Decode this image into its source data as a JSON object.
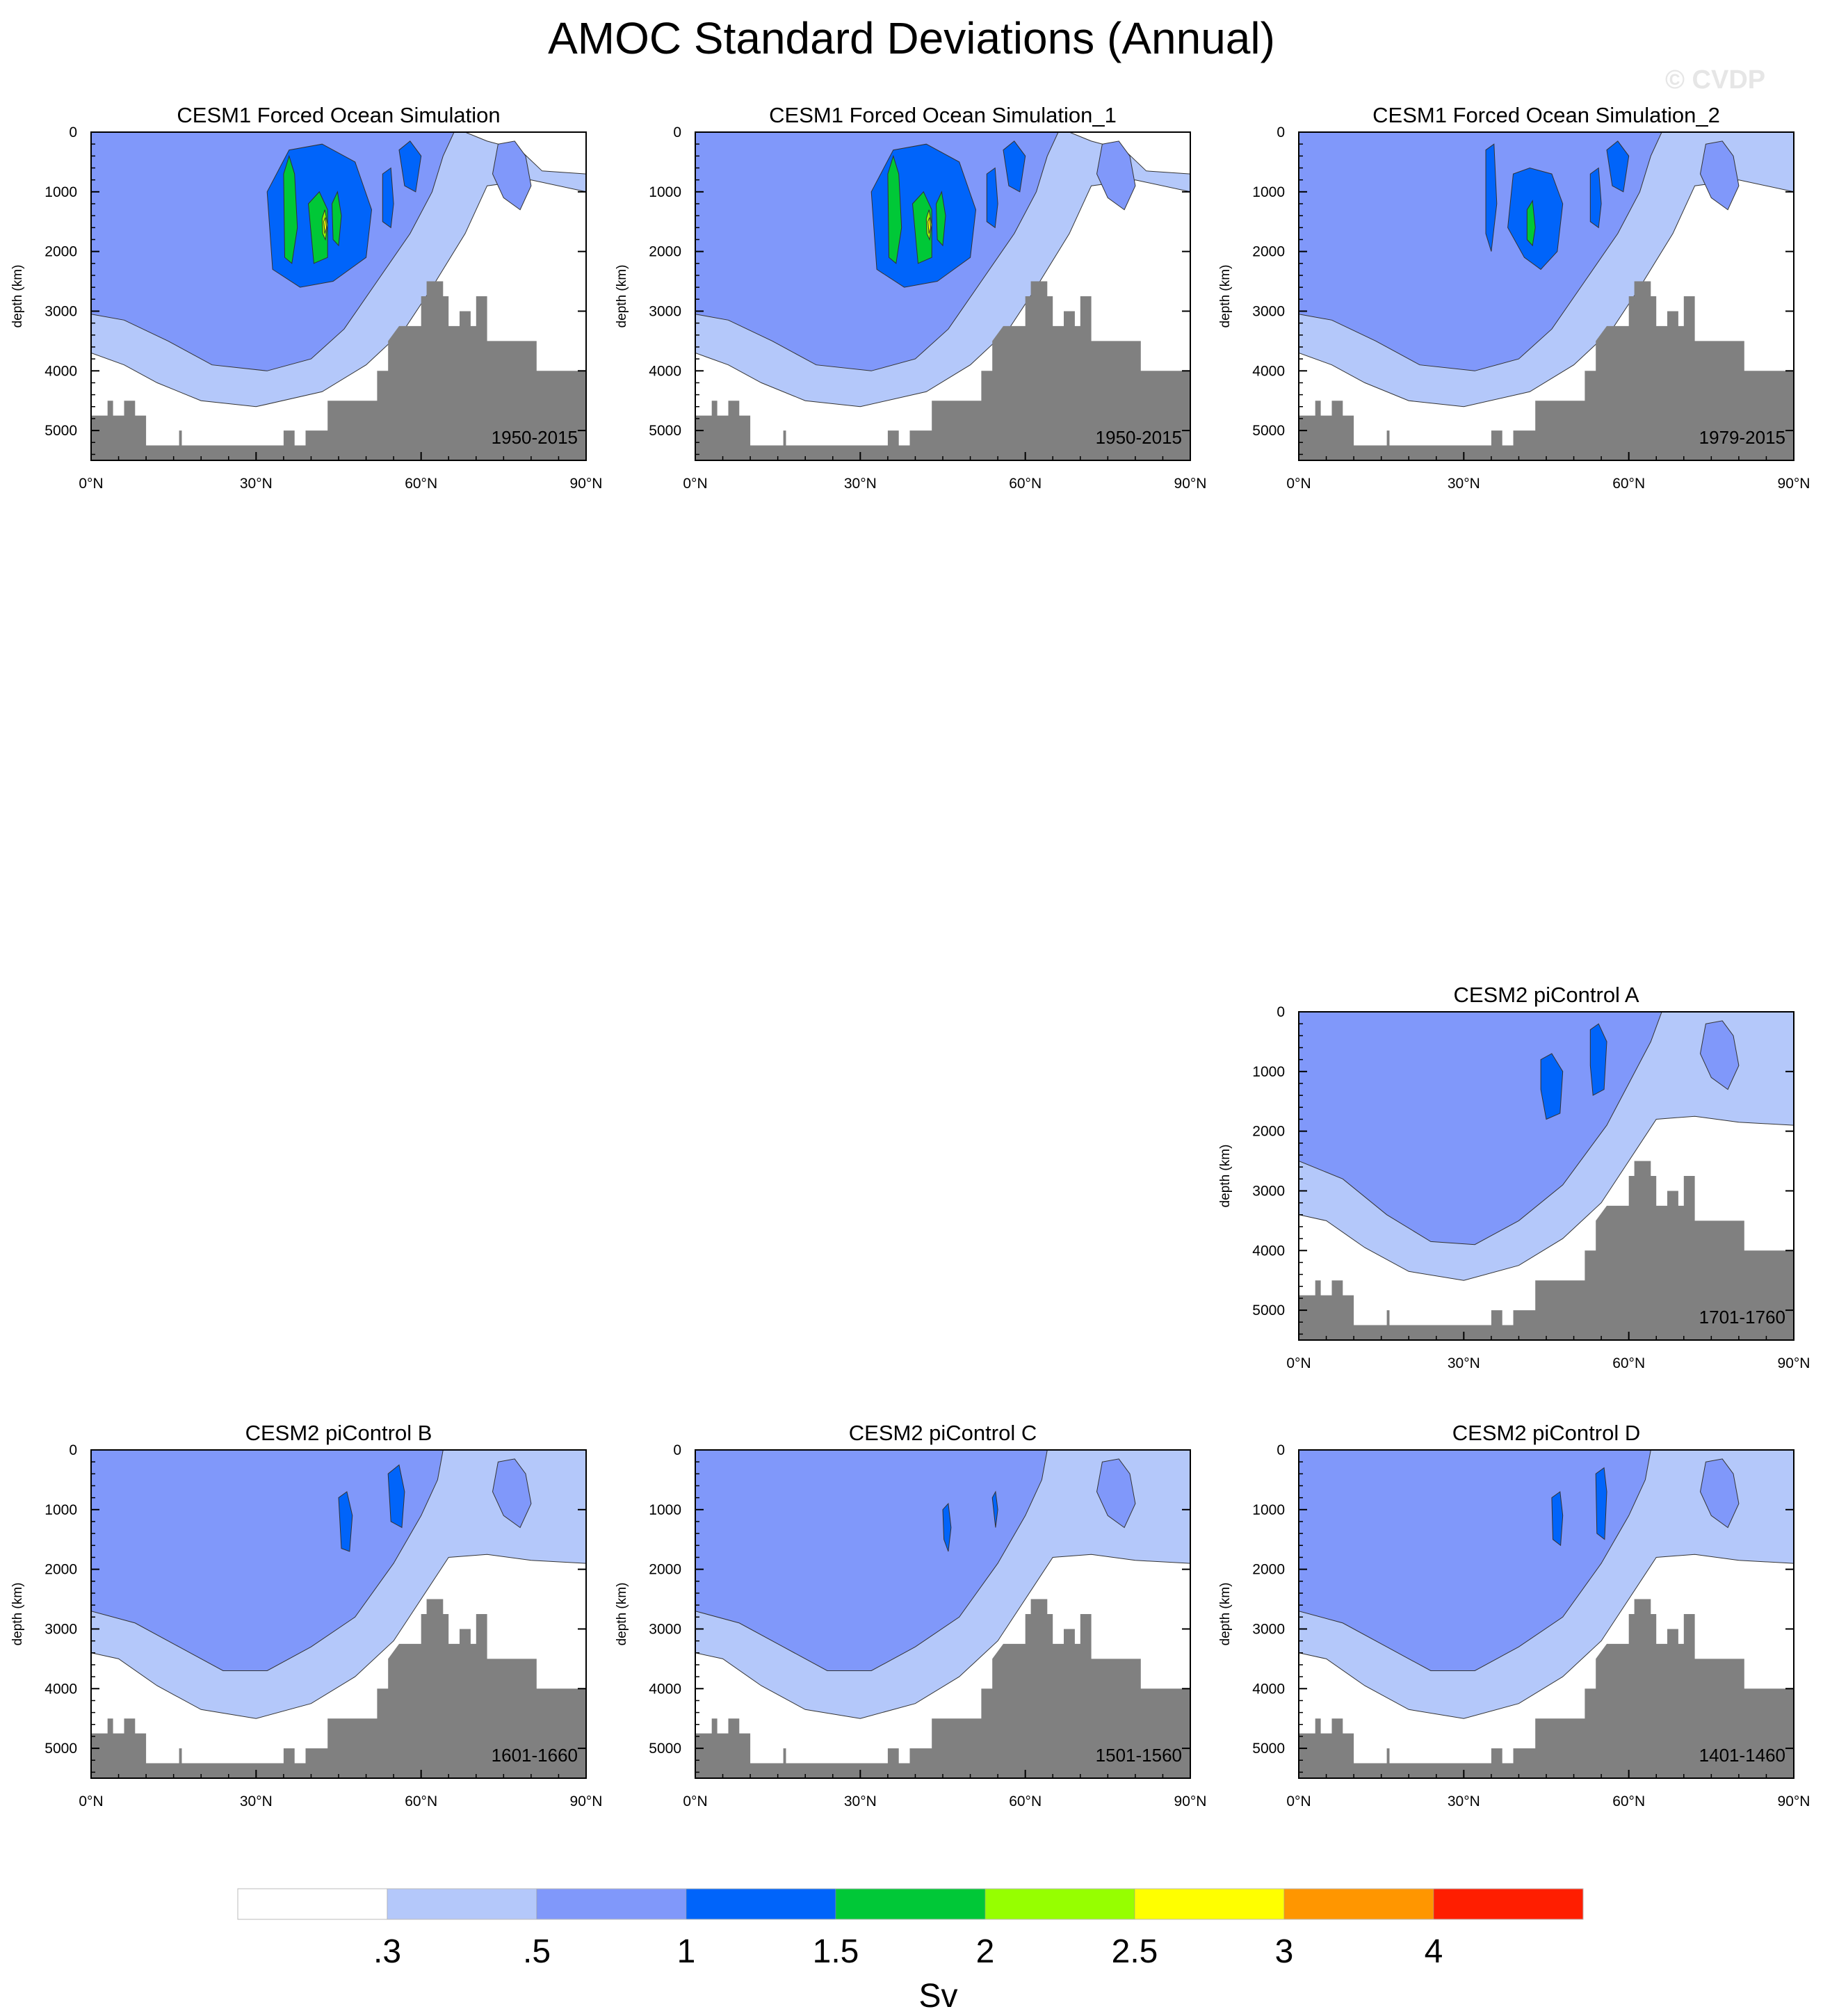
{
  "figure_title": "AMOC Standard Deviations (Annual)",
  "watermark": "© CVDP",
  "chart_data": {
    "type": "contour",
    "variable": "AMOC standard deviation (annual)",
    "units": "Sv",
    "xlabel": "",
    "ylabel": "depth (km)",
    "x_ticks": [
      "0°N",
      "30°N",
      "60°N",
      "90°N"
    ],
    "xlim": [
      0,
      90
    ],
    "y_ticks": [
      "0",
      "1000",
      "2000",
      "3000",
      "4000",
      "5000"
    ],
    "ylim": [
      5500,
      0
    ],
    "contour_levels": [
      ".3",
      ".5",
      "1",
      "1.5",
      "2",
      "2.5",
      "3",
      "4"
    ],
    "colors": {
      "lt0.3": "#ffffff",
      "0.3-0.5": "#b4c8fa",
      "0.5-1": "#8098fa",
      "1-1.5": "#0064fa",
      "1.5-2": "#00c837",
      "2-2.5": "#96ff00",
      "2.5-3": "#ffff00",
      "3-4": "#ff9600",
      "gt4": "#ff1e00",
      "land": "#808080"
    },
    "panels": [
      {
        "title": "CESM1 Forced Ocean Simulation",
        "period": "1950-2015",
        "max_level": "2.5"
      },
      {
        "title": "CESM1 Forced Ocean Simulation_1",
        "period": "1950-2015",
        "max_level": "2.5"
      },
      {
        "title": "CESM1 Forced Ocean Simulation_2",
        "period": "1979-2015",
        "max_level": "2"
      },
      {
        "title": "CESM2 piControl A",
        "period": "1701-1760",
        "max_level": "1.5"
      },
      {
        "title": "CESM2 piControl B",
        "period": "1601-1660",
        "max_level": "1.5"
      },
      {
        "title": "CESM2 piControl C",
        "period": "1501-1560",
        "max_level": "1.5"
      },
      {
        "title": "CESM2 piControl D",
        "period": "1401-1460",
        "max_level": "1.5"
      }
    ],
    "colorbar": {
      "labels": [
        ".3",
        ".5",
        "1",
        "1.5",
        "2",
        "2.5",
        "3",
        "4"
      ],
      "title": "Sv"
    }
  }
}
